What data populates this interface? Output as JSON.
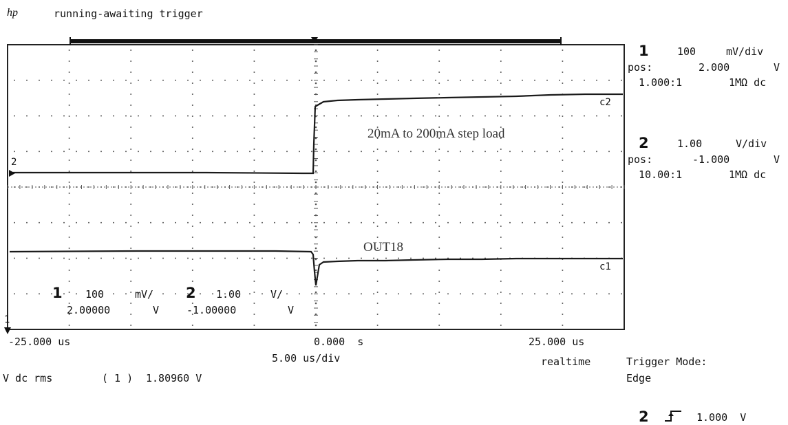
{
  "header": {
    "logo": "hp",
    "status": "running-awaiting trigger"
  },
  "channel1": {
    "number": "1",
    "scale": "100",
    "scale_unit": "mV/div",
    "pos_label": "pos:",
    "pos_value": "2.000",
    "pos_unit": "V",
    "probe": "1.000:1",
    "coupling": "1MΩ dc"
  },
  "channel2": {
    "number": "2",
    "scale": "1.00",
    "scale_unit": "V/div",
    "pos_label": "pos:",
    "pos_value": "-1.000",
    "pos_unit": "V",
    "probe": "10.00:1",
    "coupling": "1MΩ dc"
  },
  "trace_labels": {
    "c1": "c1",
    "c2": "c2",
    "marker_ch1": "1",
    "marker_ch2": "2"
  },
  "annotations": {
    "step_load": "20mA to 200mA step load",
    "output": "OUT18"
  },
  "overlay": {
    "ch1_num": "1",
    "ch1_scale": "100",
    "ch1_unit": "mV/",
    "ch2_num": "2",
    "ch2_scale": "1.00",
    "ch2_unit": "V/",
    "ch1_offset": "2.00000",
    "ch1_offset_unit": "V",
    "ch2_offset": "-1.00000",
    "ch2_offset_unit": "V"
  },
  "timebase": {
    "left": "-25.000 us",
    "center": "0.000  s",
    "right": "25.000 us",
    "per_div": "5.00 us/div",
    "mode": "realtime"
  },
  "measurement": {
    "label": "V dc rms",
    "channel": "( 1 )",
    "value": "1.80960 V"
  },
  "trigger": {
    "mode_label": "Trigger Mode:",
    "mode_value": "Edge",
    "source": "2",
    "slope_symbol": "rising-edge-icon",
    "level": "1.000  V"
  },
  "colors": {
    "trace": "#1a1a1a",
    "grid": "#555555",
    "background": "#ffffff"
  }
}
